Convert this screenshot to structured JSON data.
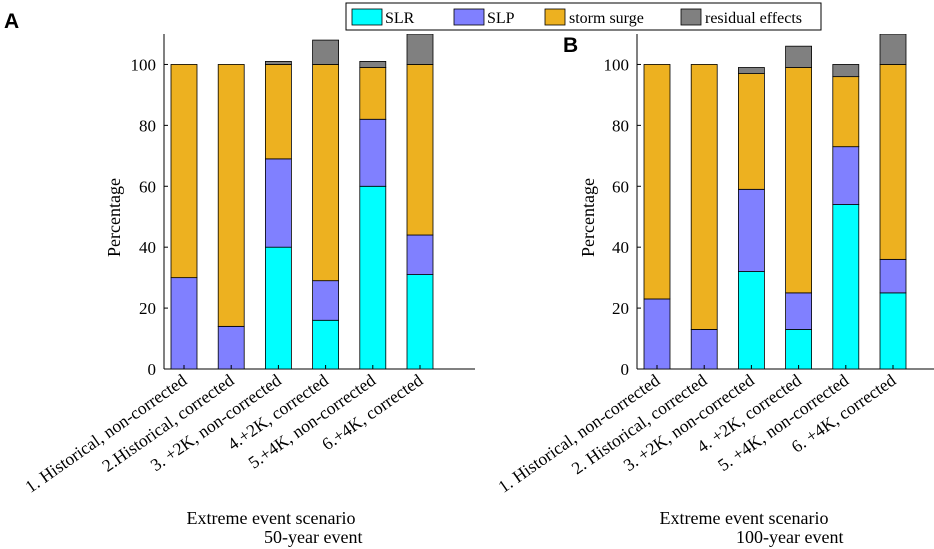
{
  "legend": [
    {
      "key": "slr",
      "label": "SLR",
      "color": "#00FFFF"
    },
    {
      "key": "slp",
      "label": "SLP",
      "color": "#8080FF"
    },
    {
      "key": "surge",
      "label": "storm surge",
      "color": "#EDB120"
    },
    {
      "key": "residual",
      "label": "residual effects",
      "color": "#808080"
    }
  ],
  "chart_data": [
    {
      "type": "bar",
      "stacked": true,
      "panel": "A",
      "xlabel": "Extreme event scenario",
      "subtitle": "50-year event",
      "ylabel": "Percentage",
      "ylim": [
        0,
        110
      ],
      "yticks": [
        0,
        20,
        40,
        60,
        80,
        100
      ],
      "categories": [
        "1. Historical, non-corrected",
        "2.Historical, corrected",
        "3. +2K, non-corrected",
        "4.+2K, corrected",
        "5.+4K, non-corrected",
        "6.+4K, corrected"
      ],
      "series": [
        {
          "name": "SLR",
          "values": [
            0,
            0,
            40,
            16,
            60,
            31
          ]
        },
        {
          "name": "SLP",
          "values": [
            30,
            14,
            29,
            13,
            22,
            13
          ]
        },
        {
          "name": "storm surge",
          "values": [
            70,
            86,
            31,
            71,
            17,
            56
          ]
        },
        {
          "name": "residual effects",
          "values": [
            0,
            0,
            1,
            8,
            2,
            10
          ]
        }
      ]
    },
    {
      "type": "bar",
      "stacked": true,
      "panel": "B",
      "xlabel": "Extreme event scenario",
      "subtitle": "100-year event",
      "ylabel": "Percentage",
      "ylim": [
        0,
        110
      ],
      "yticks": [
        0,
        20,
        40,
        60,
        80,
        100
      ],
      "categories": [
        "1. Historical, non-corrected",
        "2. Historical, corrected",
        "3. +2K, non-corrected",
        "4. +2K, corrected",
        "5. +4K, non-corrected",
        "6. +4K, corrected"
      ],
      "series": [
        {
          "name": "SLR",
          "values": [
            0,
            0,
            32,
            13,
            54,
            25
          ]
        },
        {
          "name": "SLP",
          "values": [
            23,
            13,
            27,
            12,
            19,
            11
          ]
        },
        {
          "name": "storm surge",
          "values": [
            77,
            87,
            38,
            74,
            23,
            64
          ]
        },
        {
          "name": "residual effects",
          "values": [
            0,
            0,
            2,
            7,
            4,
            10
          ]
        }
      ]
    }
  ]
}
